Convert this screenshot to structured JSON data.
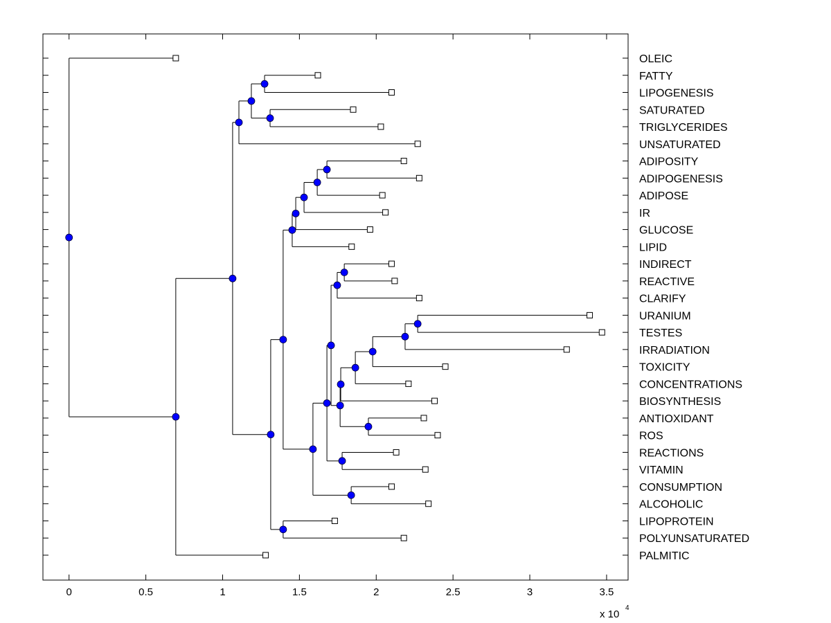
{
  "chart_data": {
    "type": "dendrogram",
    "title": "",
    "xlabel": "",
    "ylabel": "",
    "x_multiplier_label": "x 10",
    "x_multiplier_exponent": "4",
    "xlim": [
      -0.17,
      3.64
    ],
    "xticks": [
      0,
      0.5,
      1,
      1.5,
      2,
      2.5,
      3,
      3.5
    ],
    "xtick_labels": [
      "0",
      "0.5",
      "1",
      "1.5",
      "2",
      "2.5",
      "3",
      "3.5"
    ],
    "grid": false,
    "colors": {
      "node_fill": "#0000ff",
      "line": "#000000",
      "leaf_fill": "#ffffff"
    },
    "leaves": [
      {
        "id": "OLEIC",
        "label": "OLEIC",
        "value": 0.695
      },
      {
        "id": "FATTY",
        "label": "FATTY",
        "value": 1.62
      },
      {
        "id": "LIPOGENESIS",
        "label": "LIPOGENESIS",
        "value": 2.1
      },
      {
        "id": "SATURATED",
        "label": "SATURATED",
        "value": 1.85
      },
      {
        "id": "TRIGLYCERIDES",
        "label": "TRIGLYCERIDES",
        "value": 2.03
      },
      {
        "id": "UNSATURATED",
        "label": "UNSATURATED",
        "value": 2.27
      },
      {
        "id": "ADIPOSITY",
        "label": "ADIPOSITY",
        "value": 2.18
      },
      {
        "id": "ADIPOGENESIS",
        "label": "ADIPOGENESIS",
        "value": 2.28
      },
      {
        "id": "ADIPOSE",
        "label": "ADIPOSE",
        "value": 2.04
      },
      {
        "id": "IR",
        "label": "IR",
        "value": 2.06
      },
      {
        "id": "GLUCOSE",
        "label": "GLUCOSE",
        "value": 1.96
      },
      {
        "id": "LIPID",
        "label": "LIPID",
        "value": 1.84
      },
      {
        "id": "INDIRECT",
        "label": "INDIRECT",
        "value": 2.1
      },
      {
        "id": "REACTIVE",
        "label": "REACTIVE",
        "value": 2.12
      },
      {
        "id": "CLARIFY",
        "label": "CLARIFY",
        "value": 2.28
      },
      {
        "id": "URANIUM",
        "label": "URANIUM",
        "value": 3.39
      },
      {
        "id": "TESTES",
        "label": "TESTES",
        "value": 3.47
      },
      {
        "id": "IRRADIATION",
        "label": "IRRADIATION",
        "value": 3.24
      },
      {
        "id": "TOXICITY",
        "label": "TOXICITY",
        "value": 2.45
      },
      {
        "id": "CONCENTRATIONS",
        "label": "CONCENTRATIONS",
        "value": 2.21
      },
      {
        "id": "BIOSYNTHESIS",
        "label": "BIOSYNTHESIS",
        "value": 2.38
      },
      {
        "id": "ANTIOXIDANT",
        "label": "ANTIOXIDANT",
        "value": 2.31
      },
      {
        "id": "ROS",
        "label": "ROS",
        "value": 2.4
      },
      {
        "id": "REACTIONS",
        "label": "REACTIONS",
        "value": 2.13
      },
      {
        "id": "VITAMIN",
        "label": "VITAMIN",
        "value": 2.32
      },
      {
        "id": "CONSUMPTION",
        "label": "CONSUMPTION",
        "value": 2.1
      },
      {
        "id": "ALCOHOLIC",
        "label": "ALCOHOLIC",
        "value": 2.34
      },
      {
        "id": "LIPOPROTEIN",
        "label": "LIPOPROTEIN",
        "value": 1.73
      },
      {
        "id": "POLYUNSATURATED",
        "label": "POLYUNSATURATED",
        "value": 2.18
      },
      {
        "id": "PALMITIC",
        "label": "PALMITIC",
        "value": 1.28
      }
    ],
    "nodes": [
      {
        "id": "n_root",
        "value": 0.0,
        "children": [
          "OLEIC",
          "n_A"
        ]
      },
      {
        "id": "n_A",
        "value": 0.695,
        "children": [
          "n_B",
          "PALMITIC"
        ]
      },
      {
        "id": "n_B",
        "value": 1.065,
        "children": [
          "n_C",
          "n_D"
        ]
      },
      {
        "id": "n_C",
        "value": 1.106,
        "children": [
          "n_E",
          "UNSATURATED"
        ]
      },
      {
        "id": "n_E",
        "value": 1.187,
        "children": [
          "n_F",
          "n_G"
        ]
      },
      {
        "id": "n_F",
        "value": 1.273,
        "children": [
          "FATTY",
          "LIPOGENESIS"
        ]
      },
      {
        "id": "n_G",
        "value": 1.309,
        "children": [
          "SATURATED",
          "TRIGLYCERIDES"
        ]
      },
      {
        "id": "n_D",
        "value": 1.313,
        "children": [
          "n_H",
          "n_I"
        ]
      },
      {
        "id": "n_H",
        "value": 1.394,
        "children": [
          "n_J",
          "n_K"
        ]
      },
      {
        "id": "n_J",
        "value": 1.453,
        "children": [
          "n_L",
          "LIPID"
        ]
      },
      {
        "id": "n_L",
        "value": 1.476,
        "children": [
          "n_M",
          "GLUCOSE"
        ]
      },
      {
        "id": "n_M",
        "value": 1.53,
        "children": [
          "n_N",
          "IR"
        ]
      },
      {
        "id": "n_N",
        "value": 1.616,
        "children": [
          "n_O",
          "ADIPOSE"
        ]
      },
      {
        "id": "n_O",
        "value": 1.679,
        "children": [
          "ADIPOSITY",
          "ADIPOGENESIS"
        ]
      },
      {
        "id": "n_K",
        "value": 1.588,
        "children": [
          "n_S",
          "n_Q"
        ]
      },
      {
        "id": "n_S",
        "value": 1.679,
        "children": [
          "n_P",
          "n_V"
        ]
      },
      {
        "id": "n_P",
        "value": 1.706,
        "children": [
          "n_R",
          "n_U"
        ]
      },
      {
        "id": "n_R",
        "value": 1.746,
        "children": [
          "n_T",
          "CLARIFY"
        ]
      },
      {
        "id": "n_T",
        "value": 1.792,
        "children": [
          "INDIRECT",
          "REACTIVE"
        ]
      },
      {
        "id": "n_U",
        "value": 1.765,
        "children": [
          "n_W",
          "n_X"
        ]
      },
      {
        "id": "n_W",
        "value": 1.769,
        "children": [
          "n_Y",
          "BIOSYNTHESIS"
        ]
      },
      {
        "id": "n_Y",
        "value": 1.864,
        "children": [
          "n_Z",
          "CONCENTRATIONS"
        ]
      },
      {
        "id": "n_Z",
        "value": 1.977,
        "children": [
          "n_AA",
          "TOXICITY"
        ]
      },
      {
        "id": "n_AA",
        "value": 2.188,
        "children": [
          "n_BB",
          "IRRADIATION"
        ]
      },
      {
        "id": "n_BB",
        "value": 2.27,
        "children": [
          "URANIUM",
          "TESTES"
        ]
      },
      {
        "id": "n_X",
        "value": 1.949,
        "children": [
          "ANTIOXIDANT",
          "ROS"
        ]
      },
      {
        "id": "n_V",
        "value": 1.778,
        "children": [
          "REACTIONS",
          "VITAMIN"
        ]
      },
      {
        "id": "n_Q",
        "value": 1.837,
        "children": [
          "CONSUMPTION",
          "ALCOHOLIC"
        ]
      },
      {
        "id": "n_I",
        "value": 1.394,
        "children": [
          "LIPOPROTEIN",
          "POLYUNSATURATED"
        ]
      }
    ]
  }
}
